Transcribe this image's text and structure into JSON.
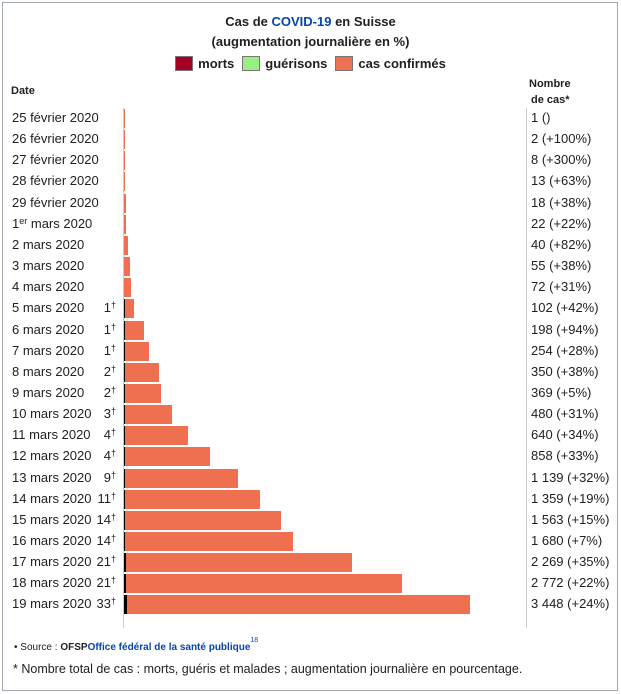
{
  "header": {
    "title_pre": "Cas de ",
    "title_link": "COVID-19",
    "title_post": " en Suisse",
    "subtitle": "(augmentation journalière en %)"
  },
  "legend": [
    {
      "label": "morts",
      "color": "#a50026"
    },
    {
      "label": "guérisons",
      "color": "#99ee88"
    },
    {
      "label": "cas confirmés",
      "color": "#ee7050"
    }
  ],
  "columns": {
    "date": "Date",
    "count_line1": "Nombre",
    "count_line2": "de cas*"
  },
  "chart_data": {
    "type": "bar",
    "orientation": "horizontal",
    "categories": [
      "25 février 2020",
      "26 février 2020",
      "27 février 2020",
      "28 février 2020",
      "29 février 2020",
      "1er mars 2020",
      "2 mars 2020",
      "3 mars 2020",
      "4 mars 2020",
      "5 mars 2020",
      "6 mars 2020",
      "7 mars 2020",
      "8 mars 2020",
      "9 mars 2020",
      "10 mars 2020",
      "11 mars 2020",
      "12 mars 2020",
      "13 mars 2020",
      "14 mars 2020",
      "15 mars 2020",
      "16 mars 2020",
      "17 mars 2020",
      "18 mars 2020",
      "19 mars 2020"
    ],
    "date_parts": [
      {
        "main": "25 février 2020",
        "sup": ""
      },
      {
        "main": "26 février 2020",
        "sup": ""
      },
      {
        "main": "27 février 2020",
        "sup": ""
      },
      {
        "main": "28 février 2020",
        "sup": ""
      },
      {
        "main": "29 février 2020",
        "sup": ""
      },
      {
        "main": "1",
        "sup": "er",
        "rest": " mars 2020"
      },
      {
        "main": "2 mars 2020",
        "sup": ""
      },
      {
        "main": "3 mars 2020",
        "sup": ""
      },
      {
        "main": "4 mars 2020",
        "sup": ""
      },
      {
        "main": "5 mars 2020",
        "sup": ""
      },
      {
        "main": "6 mars 2020",
        "sup": ""
      },
      {
        "main": "7 mars 2020",
        "sup": ""
      },
      {
        "main": "8 mars 2020",
        "sup": ""
      },
      {
        "main": "9 mars 2020",
        "sup": ""
      },
      {
        "main": "10 mars 2020",
        "sup": ""
      },
      {
        "main": "11 mars 2020",
        "sup": ""
      },
      {
        "main": "12 mars 2020",
        "sup": ""
      },
      {
        "main": "13 mars 2020",
        "sup": ""
      },
      {
        "main": "14 mars 2020",
        "sup": ""
      },
      {
        "main": "15 mars 2020",
        "sup": ""
      },
      {
        "main": "16 mars 2020",
        "sup": ""
      },
      {
        "main": "17 mars 2020",
        "sup": ""
      },
      {
        "main": "18 mars 2020",
        "sup": ""
      },
      {
        "main": "19 mars 2020",
        "sup": ""
      }
    ],
    "series": [
      {
        "name": "cas confirmés",
        "values": [
          1,
          2,
          8,
          13,
          18,
          22,
          40,
          55,
          72,
          102,
          198,
          254,
          350,
          369,
          480,
          640,
          858,
          1139,
          1359,
          1563,
          1680,
          2269,
          2772,
          3448
        ]
      },
      {
        "name": "morts",
        "values": [
          0,
          0,
          0,
          0,
          0,
          0,
          0,
          0,
          0,
          1,
          1,
          1,
          2,
          2,
          3,
          4,
          4,
          9,
          11,
          14,
          14,
          21,
          21,
          33
        ]
      }
    ],
    "deaths_labels": [
      "",
      "",
      "",
      "",
      "",
      "",
      "",
      "",
      "",
      "1",
      "1",
      "1",
      "2",
      "2",
      "3",
      "4",
      "4",
      "9",
      "11",
      "14",
      "14",
      "21",
      "21",
      "33"
    ],
    "deaths_mark": "†",
    "count_labels": [
      "1 ()",
      "2 (+100%)",
      "8 (+300%)",
      "13 (+63%)",
      "18 (+38%)",
      "22 (+22%)",
      "40 (+82%)",
      "55 (+38%)",
      "72 (+31%)",
      "102 (+42%)",
      "198 (+94%)",
      "254 (+28%)",
      "350 (+38%)",
      "369 (+5%)",
      "480 (+31%)",
      "640 (+34%)",
      "858 (+33%)",
      "1 139 (+32%)",
      "1 359 (+19%)",
      "1 563 (+15%)",
      "1 680 (+7%)",
      "2 269 (+35%)",
      "2 772 (+22%)",
      "3 448 (+24%)"
    ],
    "xlim": [
      0,
      3448
    ]
  },
  "footer": {
    "bullet": "•",
    "source_prefix": "Source : ",
    "source_bold": "OFSP",
    "source_link": "Office fédéral de la santé publique",
    "source_ref": "18",
    "note": "* Nombre total de cas : morts, guéris et malades ; augmentation journalière en pourcentage."
  }
}
